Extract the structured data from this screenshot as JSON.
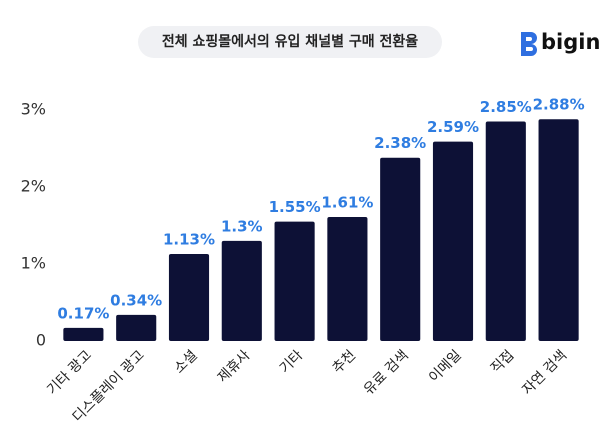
{
  "chart_data": {
    "type": "bar",
    "title": "전체 쇼핑몰에서의 유입 채널별 구매 전환율",
    "brand": "bigin",
    "categories": [
      "기타 광고",
      "디스플레이 광고",
      "소셜",
      "제휴사",
      "기타",
      "추천",
      "유료 검색",
      "이메일",
      "직접",
      "자연 검색"
    ],
    "values": [
      0.17,
      0.34,
      1.13,
      1.3,
      1.55,
      1.61,
      2.38,
      2.59,
      2.85,
      2.88
    ],
    "value_labels": [
      "0.17%",
      "0.34%",
      "1.13%",
      "1.3%",
      "1.55%",
      "1.61%",
      "2.38%",
      "2.59%",
      "2.85%",
      "2.88%"
    ],
    "color": "#0d1136",
    "label_color": "#2f7de1",
    "ylim": [
      0,
      3
    ],
    "yticks": [
      0,
      {
        "value": 1,
        "label": "1%"
      },
      {
        "value": 2,
        "label": "2%"
      },
      {
        "value": 3,
        "label": "3%"
      }
    ],
    "grid": false
  }
}
